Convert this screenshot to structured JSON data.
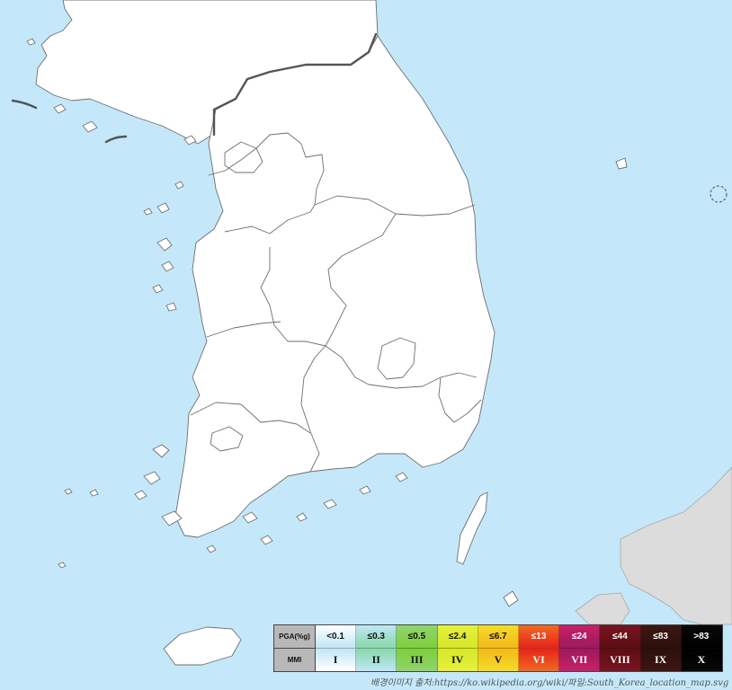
{
  "legend": {
    "pga_header": "PGA(%g)",
    "mmi_header": "MMI",
    "bins": [
      {
        "pga": "<0.1",
        "mmi": "I",
        "color_top": "#ffffff",
        "color_bottom": "#bfe6f8",
        "text": "#111111"
      },
      {
        "pga": "≤0.3",
        "mmi": "II",
        "color_top": "#bfe6f8",
        "color_bottom": "#88d8a8",
        "text": "#111111"
      },
      {
        "pga": "≤0.5",
        "mmi": "III",
        "color_top": "#8fd46e",
        "color_bottom": "#7fcf3a",
        "text": "#111111"
      },
      {
        "pga": "≤2.4",
        "mmi": "IV",
        "color_top": "#e8f03a",
        "color_bottom": "#d6e82a",
        "text": "#111111"
      },
      {
        "pga": "≤6.7",
        "mmi": "V",
        "color_top": "#f5dc28",
        "color_bottom": "#f4b81a",
        "text": "#111111"
      },
      {
        "pga": "≤13",
        "mmi": "VI",
        "color_top": "#f06a22",
        "color_bottom": "#e8231c",
        "text": "#ffffff"
      },
      {
        "pga": "≤24",
        "mmi": "VII",
        "color_top": "#c8206a",
        "color_bottom": "#9c1a5c",
        "text": "#ffffff"
      },
      {
        "pga": "≤44",
        "mmi": "VIII",
        "color_top": "#7a1420",
        "color_bottom": "#5a0e14",
        "text": "#ffffff"
      },
      {
        "pga": "≤83",
        "mmi": "IX",
        "color_top": "#3e1610",
        "color_bottom": "#2c100c",
        "text": "#ffffff"
      },
      {
        "pga": ">83",
        "mmi": "X",
        "color_top": "#080808",
        "color_bottom": "#000000",
        "text": "#ffffff"
      }
    ]
  },
  "credit": "배경이미지 출처:https://ko.wikipedia.org/wiki/파일:South_Korea_location_map.svg",
  "colors": {
    "sea": "#c4e8fa",
    "land": "#ffffff",
    "foreign_land": "#dcdcdc",
    "border": "#555555"
  }
}
